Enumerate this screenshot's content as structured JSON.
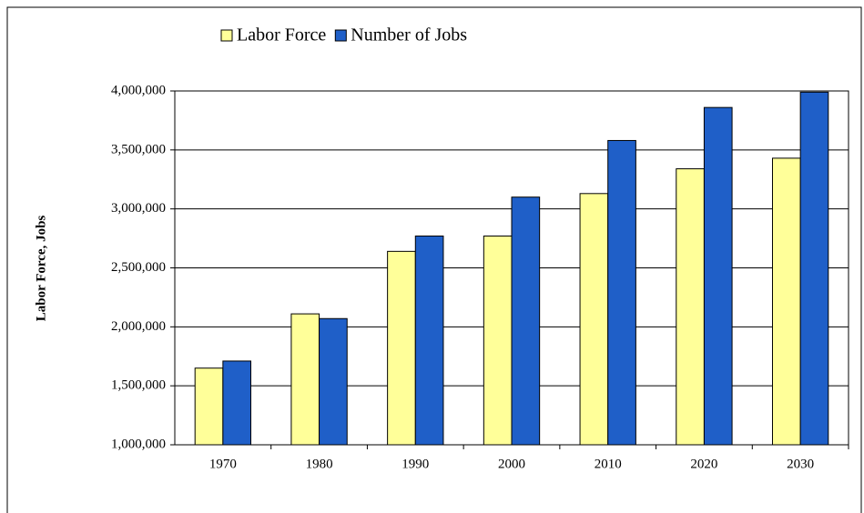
{
  "chart_data": {
    "type": "bar",
    "y_label": "Labor Force, Jobs",
    "categories": [
      "1970",
      "1980",
      "1990",
      "2000",
      "2010",
      "2020",
      "2030"
    ],
    "series": [
      {
        "name": "Labor Force",
        "color": "#ffff99",
        "values": [
          1650000,
          2110000,
          2640000,
          2770000,
          3130000,
          3340000,
          3430000
        ]
      },
      {
        "name": "Number of Jobs",
        "color": "#1f5fc8",
        "values": [
          1710000,
          2070000,
          2770000,
          3100000,
          3580000,
          3860000,
          3990000
        ]
      }
    ],
    "ylim": [
      1000000,
      4000000
    ],
    "yticks": [
      {
        "value": 1000000,
        "label": "1,000,000"
      },
      {
        "value": 1500000,
        "label": "1,500,000"
      },
      {
        "value": 2000000,
        "label": "2,000,000"
      },
      {
        "value": 2500000,
        "label": "2,500,000"
      },
      {
        "value": 3000000,
        "label": "3,000,000"
      },
      {
        "value": 3500000,
        "label": "3,500,000"
      },
      {
        "value": 4000000,
        "label": "4,000,000"
      }
    ],
    "grid": true
  }
}
